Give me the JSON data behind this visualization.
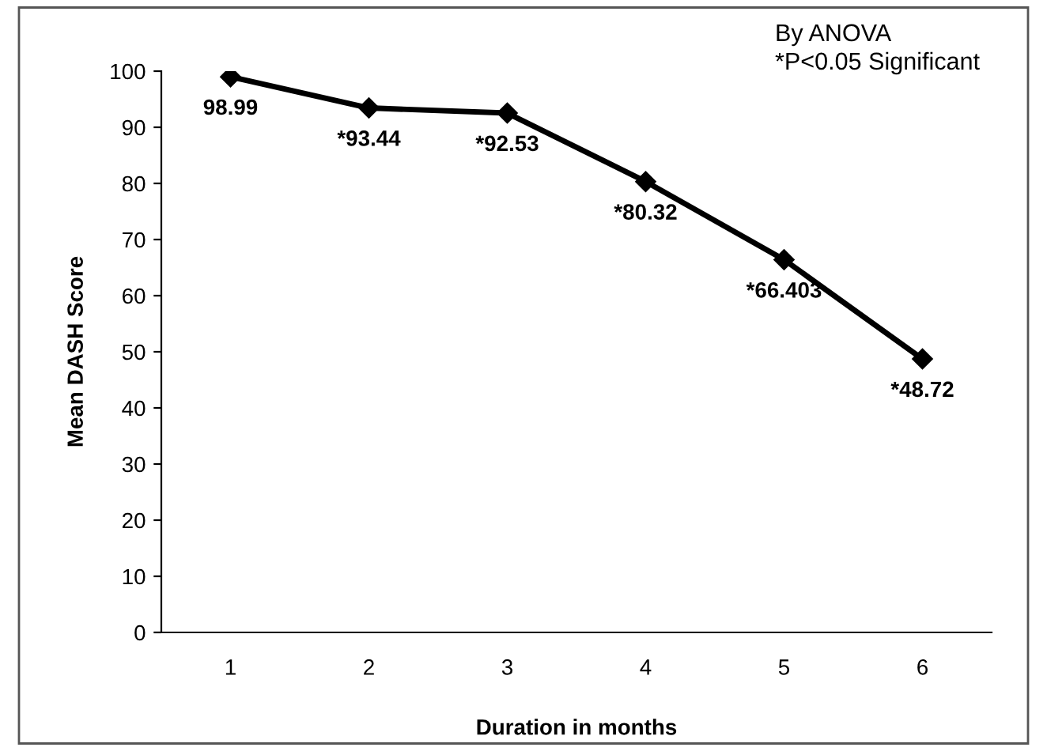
{
  "chart_data": {
    "type": "line",
    "xlabel": "Duration in months",
    "ylabel": "Mean DASH Score",
    "categories": [
      "1",
      "2",
      "3",
      "4",
      "5",
      "6"
    ],
    "series": [
      {
        "color": "#000000",
        "values": [
          98.99,
          93.44,
          92.53,
          80.32,
          66.403,
          48.72
        ],
        "value_labels": [
          "98.99",
          "*93.44",
          "*92.53",
          "*80.32",
          "*66.403",
          "*48.72"
        ]
      }
    ],
    "ylim": [
      0,
      100
    ],
    "yticks": [
      0,
      10,
      20,
      30,
      40,
      50,
      60,
      70,
      80,
      90,
      100
    ],
    "grid": false,
    "legend": false,
    "marker": "diamond",
    "line_style": "solid",
    "annotations": [
      "By ANOVA",
      "*P<0.05 Significant"
    ]
  }
}
